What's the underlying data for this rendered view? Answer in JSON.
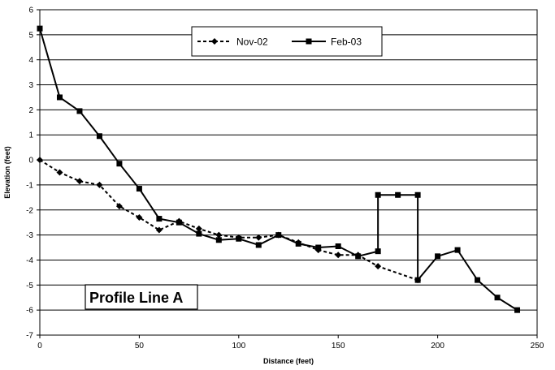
{
  "chart_data": {
    "type": "line",
    "title": "",
    "xlabel": "Distance (feet)",
    "ylabel": "Elevation (feet)",
    "xlim": [
      0,
      250
    ],
    "ylim": [
      -7,
      6
    ],
    "x_ticks": [
      0,
      50,
      100,
      150,
      200,
      250
    ],
    "y_ticks": [
      6,
      5,
      4,
      3,
      2,
      1,
      0,
      -1,
      -2,
      -3,
      -4,
      -5,
      -6,
      -7
    ],
    "grid": "horizontal",
    "legend_position": "top-center",
    "annotation": "Profile Line A",
    "series": [
      {
        "name": "Nov-02",
        "line_style": "dashed",
        "marker": "diamond",
        "color": "#000000",
        "points": [
          [
            0,
            0.0
          ],
          [
            10,
            -0.5
          ],
          [
            20,
            -0.85
          ],
          [
            30,
            -1.0
          ],
          [
            40,
            -1.85
          ],
          [
            50,
            -2.3
          ],
          [
            60,
            -2.8
          ],
          [
            70,
            -2.45
          ],
          [
            80,
            -2.75
          ],
          [
            90,
            -3.0
          ],
          [
            100,
            -3.1
          ],
          [
            110,
            -3.1
          ],
          [
            120,
            -3.0
          ],
          [
            130,
            -3.3
          ],
          [
            140,
            -3.6
          ],
          [
            150,
            -3.8
          ],
          [
            160,
            -3.8
          ],
          [
            170,
            -4.25
          ],
          [
            190,
            -4.8
          ]
        ]
      },
      {
        "name": "Feb-03",
        "line_style": "solid",
        "marker": "square",
        "color": "#000000",
        "points": [
          [
            0,
            5.25
          ],
          [
            10,
            2.5
          ],
          [
            20,
            1.95
          ],
          [
            30,
            0.95
          ],
          [
            40,
            -0.15
          ],
          [
            50,
            -1.15
          ],
          [
            60,
            -2.35
          ],
          [
            70,
            -2.5
          ],
          [
            80,
            -2.95
          ],
          [
            90,
            -3.2
          ],
          [
            100,
            -3.15
          ],
          [
            110,
            -3.4
          ],
          [
            120,
            -3.0
          ],
          [
            130,
            -3.35
          ],
          [
            140,
            -3.5
          ],
          [
            150,
            -3.45
          ],
          [
            160,
            -3.85
          ],
          [
            170,
            -3.65
          ],
          [
            170,
            -1.4
          ],
          [
            180,
            -1.4
          ],
          [
            190,
            -1.4
          ],
          [
            190,
            -4.8
          ],
          [
            200,
            -3.85
          ],
          [
            210,
            -3.6
          ],
          [
            220,
            -4.8
          ],
          [
            230,
            -5.5
          ],
          [
            240,
            -6.0
          ]
        ]
      }
    ]
  }
}
